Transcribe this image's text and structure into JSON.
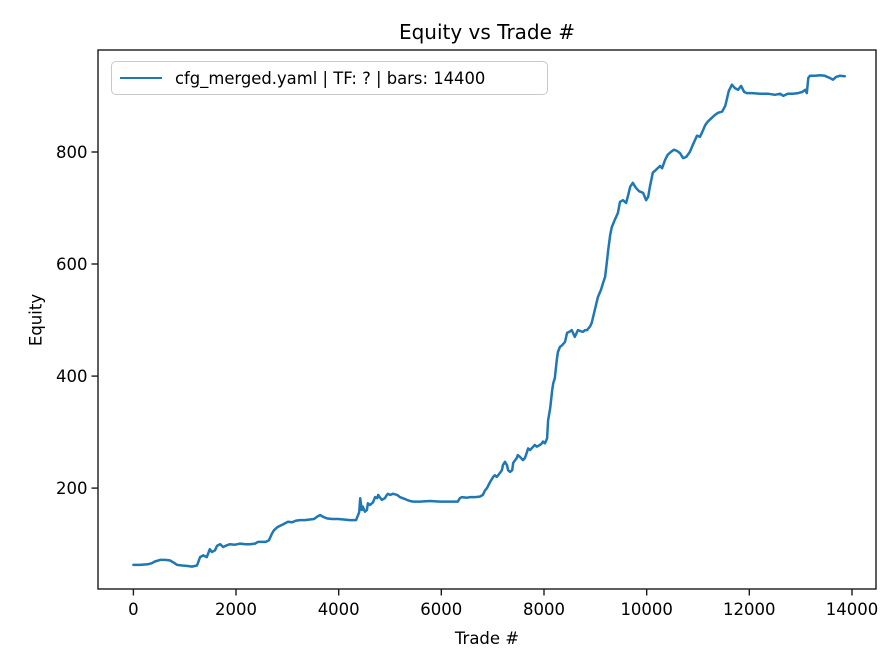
{
  "chart_data": {
    "type": "line",
    "title": "Equity vs Trade #",
    "xlabel": "Trade #",
    "ylabel": "Equity",
    "xlim": [
      -689,
      14468
    ],
    "ylim": [
      20,
      982
    ],
    "xticks": [
      0,
      2000,
      4000,
      6000,
      8000,
      10000,
      12000,
      14000
    ],
    "yticks": [
      200,
      400,
      600,
      800
    ],
    "grid": false,
    "legend_position": "upper left",
    "line_color": "#1f77b4",
    "spine_color": "#1a1a1a",
    "series": [
      {
        "name": "cfg_merged.yaml | TF: ? | bars: 14400",
        "points": [
          [
            0,
            63
          ],
          [
            130,
            63
          ],
          [
            280,
            64
          ],
          [
            360,
            66
          ],
          [
            420,
            69
          ],
          [
            520,
            72
          ],
          [
            620,
            72
          ],
          [
            710,
            71
          ],
          [
            790,
            67
          ],
          [
            850,
            63
          ],
          [
            950,
            62
          ],
          [
            1060,
            61
          ],
          [
            1140,
            60
          ],
          [
            1240,
            62
          ],
          [
            1300,
            77
          ],
          [
            1360,
            80
          ],
          [
            1430,
            77
          ],
          [
            1490,
            91
          ],
          [
            1530,
            86
          ],
          [
            1590,
            89
          ],
          [
            1630,
            97
          ],
          [
            1690,
            100
          ],
          [
            1750,
            95
          ],
          [
            1820,
            98
          ],
          [
            1880,
            100
          ],
          [
            1980,
            99
          ],
          [
            2080,
            101
          ],
          [
            2180,
            100
          ],
          [
            2270,
            100
          ],
          [
            2370,
            101
          ],
          [
            2430,
            104
          ],
          [
            2510,
            104
          ],
          [
            2580,
            104
          ],
          [
            2640,
            107
          ],
          [
            2700,
            119
          ],
          [
            2740,
            125
          ],
          [
            2800,
            130
          ],
          [
            2860,
            133
          ],
          [
            2930,
            136
          ],
          [
            3010,
            140
          ],
          [
            3090,
            139
          ],
          [
            3170,
            142
          ],
          [
            3250,
            143
          ],
          [
            3340,
            143
          ],
          [
            3440,
            144
          ],
          [
            3520,
            145
          ],
          [
            3580,
            149
          ],
          [
            3640,
            152
          ],
          [
            3690,
            149
          ],
          [
            3770,
            146
          ],
          [
            3870,
            145
          ],
          [
            3990,
            145
          ],
          [
            4100,
            144
          ],
          [
            4220,
            143
          ],
          [
            4340,
            143
          ],
          [
            4400,
            157
          ],
          [
            4420,
            182
          ],
          [
            4450,
            161
          ],
          [
            4470,
            167
          ],
          [
            4510,
            158
          ],
          [
            4550,
            161
          ],
          [
            4570,
            173
          ],
          [
            4610,
            170
          ],
          [
            4670,
            175
          ],
          [
            4710,
            184
          ],
          [
            4750,
            182
          ],
          [
            4770,
            188
          ],
          [
            4800,
            184
          ],
          [
            4840,
            179
          ],
          [
            4900,
            182
          ],
          [
            4940,
            188
          ],
          [
            4960,
            190
          ],
          [
            5000,
            188
          ],
          [
            5060,
            190
          ],
          [
            5140,
            188
          ],
          [
            5190,
            184
          ],
          [
            5250,
            182
          ],
          [
            5330,
            179
          ],
          [
            5390,
            177
          ],
          [
            5450,
            176
          ],
          [
            5580,
            176
          ],
          [
            5780,
            177
          ],
          [
            5970,
            176
          ],
          [
            6170,
            176
          ],
          [
            6320,
            176
          ],
          [
            6360,
            182
          ],
          [
            6400,
            184
          ],
          [
            6500,
            183
          ],
          [
            6560,
            184
          ],
          [
            6660,
            184
          ],
          [
            6750,
            185
          ],
          [
            6810,
            188
          ],
          [
            6850,
            196
          ],
          [
            6890,
            200
          ],
          [
            6950,
            211
          ],
          [
            7010,
            220
          ],
          [
            7040,
            223
          ],
          [
            7080,
            220
          ],
          [
            7140,
            227
          ],
          [
            7180,
            232
          ],
          [
            7200,
            241
          ],
          [
            7240,
            247
          ],
          [
            7280,
            241
          ],
          [
            7300,
            232
          ],
          [
            7340,
            229
          ],
          [
            7380,
            232
          ],
          [
            7400,
            245
          ],
          [
            7470,
            254
          ],
          [
            7490,
            259
          ],
          [
            7530,
            256
          ],
          [
            7590,
            250
          ],
          [
            7630,
            254
          ],
          [
            7670,
            265
          ],
          [
            7690,
            271
          ],
          [
            7730,
            268
          ],
          [
            7790,
            274
          ],
          [
            7820,
            277
          ],
          [
            7860,
            274
          ],
          [
            7920,
            277
          ],
          [
            7960,
            280
          ],
          [
            7980,
            283
          ],
          [
            8020,
            280
          ],
          [
            8060,
            289
          ],
          [
            8080,
            321
          ],
          [
            8120,
            343
          ],
          [
            8160,
            375
          ],
          [
            8180,
            387
          ],
          [
            8210,
            396
          ],
          [
            8250,
            429
          ],
          [
            8270,
            443
          ],
          [
            8310,
            452
          ],
          [
            8350,
            455
          ],
          [
            8410,
            461
          ],
          [
            8450,
            477
          ],
          [
            8510,
            480
          ],
          [
            8540,
            482
          ],
          [
            8600,
            470
          ],
          [
            8660,
            482
          ],
          [
            8720,
            480
          ],
          [
            8760,
            479
          ],
          [
            8800,
            482
          ],
          [
            8840,
            482
          ],
          [
            8900,
            489
          ],
          [
            8930,
            495
          ],
          [
            8990,
            518
          ],
          [
            9050,
            541
          ],
          [
            9110,
            554
          ],
          [
            9150,
            566
          ],
          [
            9190,
            577
          ],
          [
            9230,
            607
          ],
          [
            9250,
            625
          ],
          [
            9290,
            652
          ],
          [
            9320,
            666
          ],
          [
            9380,
            679
          ],
          [
            9440,
            691
          ],
          [
            9480,
            711
          ],
          [
            9540,
            714
          ],
          [
            9600,
            709
          ],
          [
            9640,
            723
          ],
          [
            9680,
            738
          ],
          [
            9730,
            745
          ],
          [
            9790,
            736
          ],
          [
            9850,
            730
          ],
          [
            9930,
            727
          ],
          [
            9990,
            714
          ],
          [
            10030,
            720
          ],
          [
            10060,
            736
          ],
          [
            10120,
            763
          ],
          [
            10180,
            768
          ],
          [
            10260,
            775
          ],
          [
            10300,
            771
          ],
          [
            10360,
            786
          ],
          [
            10410,
            795
          ],
          [
            10470,
            800
          ],
          [
            10530,
            804
          ],
          [
            10590,
            802
          ],
          [
            10650,
            798
          ],
          [
            10710,
            789
          ],
          [
            10770,
            791
          ],
          [
            10840,
            800
          ],
          [
            10900,
            813
          ],
          [
            10980,
            829
          ],
          [
            11040,
            827
          ],
          [
            11100,
            839
          ],
          [
            11140,
            848
          ],
          [
            11190,
            854
          ],
          [
            11270,
            861
          ],
          [
            11330,
            866
          ],
          [
            11390,
            870
          ],
          [
            11470,
            872
          ],
          [
            11530,
            882
          ],
          [
            11560,
            893
          ],
          [
            11600,
            909
          ],
          [
            11660,
            920
          ],
          [
            11720,
            914
          ],
          [
            11780,
            911
          ],
          [
            11840,
            918
          ],
          [
            11900,
            907
          ],
          [
            11950,
            905
          ],
          [
            12050,
            905
          ],
          [
            12210,
            904
          ],
          [
            12360,
            904
          ],
          [
            12500,
            902
          ],
          [
            12600,
            904
          ],
          [
            12660,
            900
          ],
          [
            12750,
            904
          ],
          [
            12850,
            904
          ],
          [
            12950,
            905
          ],
          [
            13030,
            907
          ],
          [
            13090,
            911
          ],
          [
            13120,
            905
          ],
          [
            13150,
            932
          ],
          [
            13180,
            936
          ],
          [
            13280,
            936
          ],
          [
            13380,
            937
          ],
          [
            13470,
            936
          ],
          [
            13570,
            932
          ],
          [
            13630,
            929
          ],
          [
            13690,
            934
          ],
          [
            13760,
            936
          ],
          [
            13860,
            935
          ]
        ]
      }
    ]
  }
}
